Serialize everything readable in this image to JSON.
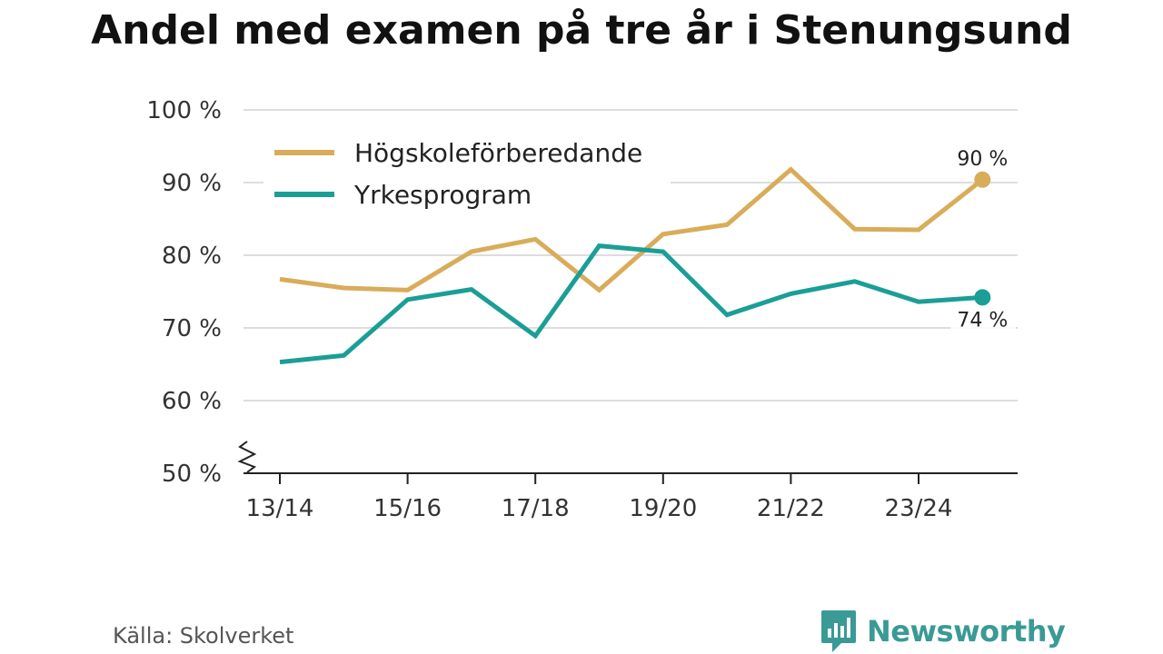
{
  "title": "Andel med examen på tre år i Stenungsund",
  "source": "Källa: Skolverket",
  "brand": {
    "name": "Newsworthy",
    "icon": "newsworthy-logo-icon",
    "color": "#3a9a95"
  },
  "chart_data": {
    "type": "line",
    "title": "Andel med examen på tre år i Stenungsund",
    "xlabel": "",
    "ylabel": "",
    "x": [
      "13/14",
      "14/15",
      "15/16",
      "16/17",
      "17/18",
      "18/19",
      "19/20",
      "20/21",
      "21/22",
      "22/23",
      "23/24",
      "24/25"
    ],
    "x_tick_labels": [
      "13/14",
      "15/16",
      "17/18",
      "19/20",
      "21/22",
      "23/24"
    ],
    "y_tick_labels": [
      "50 %",
      "60 %",
      "70 %",
      "80 %",
      "90 %",
      "100 %"
    ],
    "ylim": [
      50,
      100
    ],
    "y_axis_break": true,
    "grid": "horizontal",
    "legend_position": "top-left",
    "series": [
      {
        "name": "Högskoleförberedande",
        "color": "#d9ac5a",
        "values": [
          76.7,
          75.5,
          75.2,
          80.5,
          82.2,
          75.2,
          82.9,
          84.2,
          91.8,
          83.6,
          83.5,
          90.4
        ],
        "end_label": "90 %"
      },
      {
        "name": "Yrkesprogram",
        "color": "#1a9e96",
        "values": [
          65.3,
          66.2,
          73.9,
          75.3,
          68.9,
          81.3,
          80.5,
          71.8,
          74.7,
          76.4,
          73.6,
          74.2
        ],
        "end_label": "74 %"
      }
    ]
  }
}
